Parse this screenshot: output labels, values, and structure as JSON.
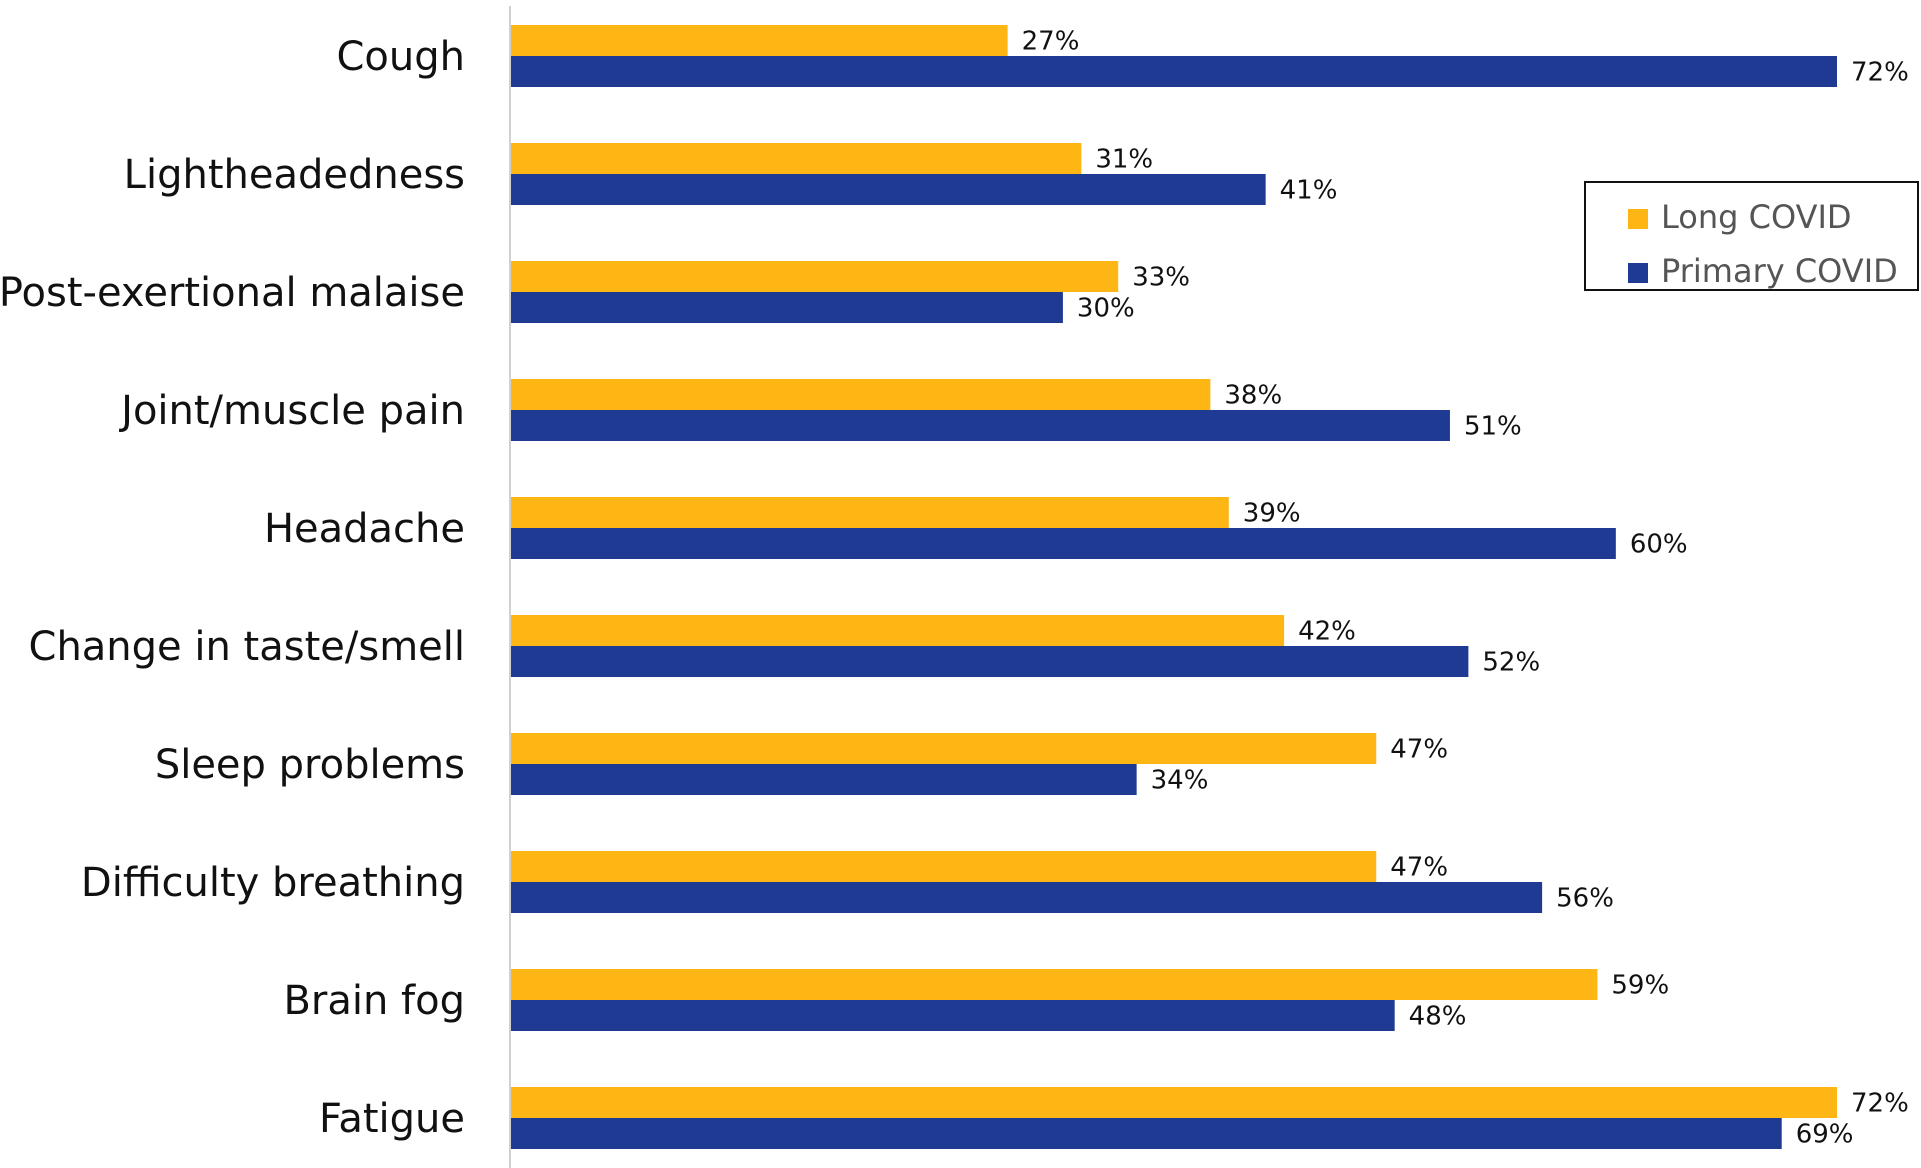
{
  "chart_data": {
    "type": "bar",
    "orientation": "horizontal",
    "categories": [
      "Cough",
      "Lightheadedness",
      "Post-exertional malaise",
      "Joint/muscle pain",
      "Headache",
      "Change in taste/smell",
      "Sleep problems",
      "Difficulty breathing",
      "Brain fog",
      "Fatigue"
    ],
    "series": [
      {
        "name": "Long COVID",
        "color": "#FDB614",
        "values": [
          27,
          31,
          33,
          38,
          39,
          42,
          47,
          47,
          59,
          72
        ],
        "labels": [
          "27%",
          "31%",
          "33%",
          "38%",
          "39%",
          "42%",
          "47%",
          "47%",
          "59%",
          "72%"
        ]
      },
      {
        "name": "Primary COVID",
        "color": "#1F3A93",
        "values": [
          72,
          41,
          30,
          51,
          60,
          52,
          34,
          56,
          48,
          69
        ],
        "labels": [
          "72%",
          "41%",
          "30%",
          "51%",
          "60%",
          "52%",
          "34%",
          "56%",
          "48%",
          "69%"
        ]
      }
    ],
    "value_axis": {
      "min": 0,
      "max": 72,
      "unit": "%"
    },
    "legend": {
      "placement": "top-right",
      "entries": [
        "Long COVID",
        "Primary COVID"
      ]
    },
    "grid": false,
    "title": "",
    "xlabel": "",
    "ylabel": ""
  }
}
